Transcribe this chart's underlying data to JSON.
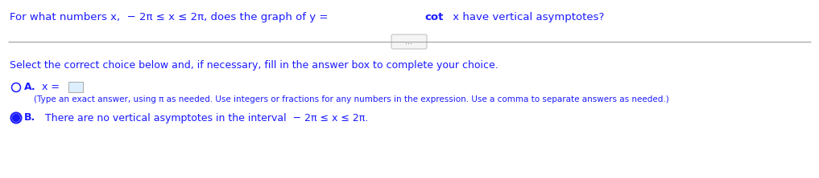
{
  "background_color": "#ffffff",
  "question_prefix": "For what numbers x,  − 2π ≤ x ≤ 2π, does the graph of y = ",
  "question_bold": "cot",
  "question_end": " x have vertical asymptotes?",
  "dots_label": "...",
  "select_text": "Select the correct choice below and, if necessary, fill in the answer box to complete your choice.",
  "option_a_label": "A.",
  "option_a_x_equals": "x = ",
  "option_a_hint": "(Type an exact answer, using π as needed. Use integers or fractions for any numbers in the expression. Use a comma to separate answers as needed.)",
  "option_b_label": "B.",
  "option_b_text": "There are no vertical asymptotes in the interval  − 2π ≤ x ≤ 2π.",
  "text_color": "#1a1aff",
  "font_size_question": 9.5,
  "font_size_select": 9.0,
  "font_size_options": 9.0,
  "font_size_hint": 7.5,
  "line_color": "#9e9e9e",
  "radio_color": "#1a1aff",
  "box_fill": "#ddeeff",
  "box_edge": "#aaaaaa"
}
